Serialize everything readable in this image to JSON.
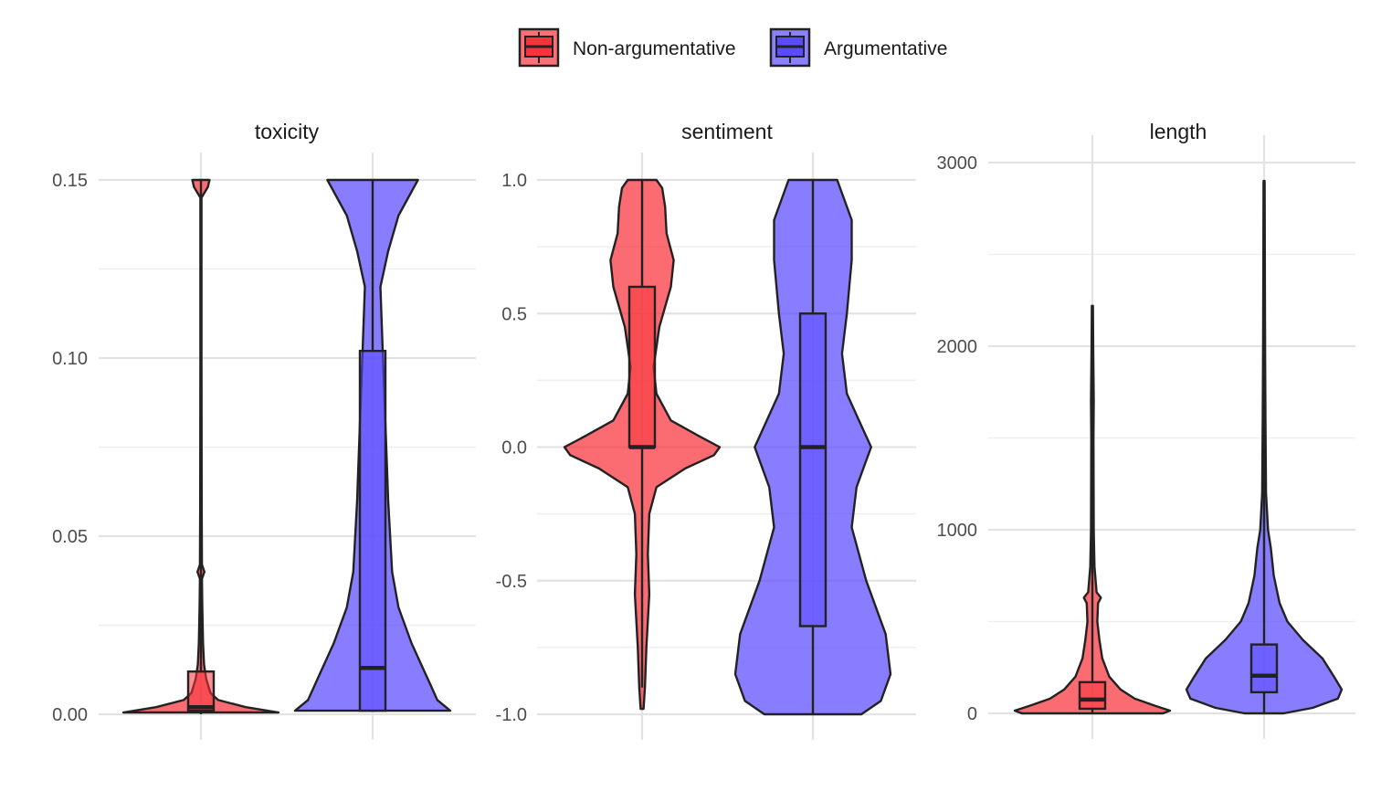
{
  "legend": {
    "items": [
      {
        "label": "Non-argumentative",
        "color": "#f8333b"
      },
      {
        "label": "Argumentative",
        "color": "#5a4bff"
      }
    ]
  },
  "chart_data": [
    {
      "type": "violin",
      "title": "toxicity",
      "ylim": [
        0,
        0.15
      ],
      "yticks": [
        0,
        0.05,
        0.1,
        0.15
      ],
      "ytick_labels": [
        "0.00",
        "0.05",
        "0.10",
        "0.15"
      ],
      "grid": true,
      "series": [
        {
          "name": "Non-argumentative",
          "box": {
            "min": 0,
            "q1": 0.001,
            "median": 0.002,
            "q3": 0.012,
            "max": 0.15
          },
          "density": [
            [
              0.0005,
              0.45
            ],
            [
              0.002,
              0.26
            ],
            [
              0.004,
              0.1
            ],
            [
              0.006,
              0.055
            ],
            [
              0.01,
              0.03
            ],
            [
              0.014,
              0.018
            ],
            [
              0.02,
              0.012
            ],
            [
              0.03,
              0.008
            ],
            [
              0.038,
              0.006
            ],
            [
              0.04,
              0.02
            ],
            [
              0.042,
              0.006
            ],
            [
              0.06,
              0.004
            ],
            [
              0.1,
              0.003
            ],
            [
              0.145,
              0.003
            ],
            [
              0.148,
              0.04
            ],
            [
              0.15,
              0.05
            ]
          ]
        },
        {
          "name": "Argumentative",
          "box": {
            "min": 0.001,
            "q1": 0.001,
            "median": 0.013,
            "q3": 0.102,
            "max": 0.15
          },
          "density": [
            [
              0.001,
              0.06
            ],
            [
              0.004,
              0.05
            ],
            [
              0.008,
              0.045
            ],
            [
              0.012,
              0.04
            ],
            [
              0.02,
              0.03
            ],
            [
              0.03,
              0.02
            ],
            [
              0.04,
              0.015
            ],
            [
              0.06,
              0.012
            ],
            [
              0.08,
              0.01
            ],
            [
              0.1,
              0.008
            ],
            [
              0.12,
              0.006
            ],
            [
              0.13,
              0.012
            ],
            [
              0.14,
              0.02
            ],
            [
              0.15,
              0.035
            ]
          ]
        }
      ]
    },
    {
      "type": "violin",
      "title": "sentiment",
      "ylim": [
        -1,
        1
      ],
      "yticks": [
        -1,
        -0.5,
        0,
        0.5,
        1
      ],
      "ytick_labels": [
        "-1.0",
        "-0.5",
        "0.0",
        "0.5",
        "1.0"
      ],
      "grid": true,
      "series": [
        {
          "name": "Non-argumentative",
          "box": {
            "min": -0.9,
            "q1": 0,
            "median": 0,
            "q3": 0.6,
            "max": 1
          },
          "density": [
            [
              -0.98,
              0.01
            ],
            [
              -0.9,
              0.02
            ],
            [
              -0.75,
              0.03
            ],
            [
              -0.55,
              0.05
            ],
            [
              -0.4,
              0.04
            ],
            [
              -0.25,
              0.05
            ],
            [
              -0.15,
              0.1
            ],
            [
              -0.08,
              0.3
            ],
            [
              -0.03,
              0.5
            ],
            [
              0,
              0.54
            ],
            [
              0.04,
              0.4
            ],
            [
              0.1,
              0.2
            ],
            [
              0.2,
              0.1
            ],
            [
              0.3,
              0.08
            ],
            [
              0.45,
              0.12
            ],
            [
              0.6,
              0.2
            ],
            [
              0.7,
              0.22
            ],
            [
              0.8,
              0.17
            ],
            [
              0.9,
              0.16
            ],
            [
              0.97,
              0.14
            ],
            [
              1,
              0.1
            ]
          ]
        },
        {
          "name": "Argumentative",
          "box": {
            "min": -1,
            "q1": -0.67,
            "median": 0,
            "q3": 0.5,
            "max": 1
          },
          "density": [
            [
              -1,
              0.1
            ],
            [
              -0.95,
              0.14
            ],
            [
              -0.85,
              0.16
            ],
            [
              -0.7,
              0.15
            ],
            [
              -0.5,
              0.11
            ],
            [
              -0.3,
              0.08
            ],
            [
              -0.15,
              0.09
            ],
            [
              -0.05,
              0.11
            ],
            [
              0,
              0.12
            ],
            [
              0.08,
              0.1
            ],
            [
              0.2,
              0.07
            ],
            [
              0.35,
              0.06
            ],
            [
              0.5,
              0.07
            ],
            [
              0.7,
              0.08
            ],
            [
              0.85,
              0.08
            ],
            [
              0.95,
              0.06
            ],
            [
              1,
              0.05
            ]
          ]
        }
      ]
    },
    {
      "type": "violin",
      "title": "length",
      "ylim": [
        0,
        3000
      ],
      "yticks": [
        0,
        1000,
        2000,
        3000
      ],
      "ytick_labels": [
        "0",
        "1000",
        "2000",
        "3000"
      ],
      "grid": true,
      "series": [
        {
          "name": "Non-argumentative",
          "box": {
            "min": 0,
            "q1": 25,
            "median": 75,
            "q3": 170,
            "max": 2220
          },
          "density": [
            [
              0,
              0.5
            ],
            [
              15,
              0.55
            ],
            [
              40,
              0.45
            ],
            [
              80,
              0.3
            ],
            [
              130,
              0.2
            ],
            [
              200,
              0.12
            ],
            [
              300,
              0.07
            ],
            [
              400,
              0.05
            ],
            [
              500,
              0.035
            ],
            [
              600,
              0.04
            ],
            [
              630,
              0.06
            ],
            [
              660,
              0.03
            ],
            [
              800,
              0.015
            ],
            [
              1000,
              0.01
            ],
            [
              1500,
              0.008
            ],
            [
              1700,
              0.01
            ],
            [
              2000,
              0.006
            ],
            [
              2220,
              0.004
            ]
          ]
        },
        {
          "name": "Argumentative",
          "box": {
            "min": 0,
            "q1": 115,
            "median": 205,
            "q3": 375,
            "max": 2900
          },
          "density": [
            [
              0,
              0.1
            ],
            [
              30,
              0.25
            ],
            [
              80,
              0.38
            ],
            [
              130,
              0.4
            ],
            [
              200,
              0.36
            ],
            [
              300,
              0.3
            ],
            [
              400,
              0.2
            ],
            [
              500,
              0.12
            ],
            [
              600,
              0.08
            ],
            [
              750,
              0.05
            ],
            [
              900,
              0.035
            ],
            [
              1000,
              0.02
            ],
            [
              1200,
              0.01
            ],
            [
              1600,
              0.007
            ],
            [
              2000,
              0.005
            ],
            [
              2500,
              0.004
            ],
            [
              2900,
              0.003
            ]
          ]
        }
      ]
    }
  ]
}
